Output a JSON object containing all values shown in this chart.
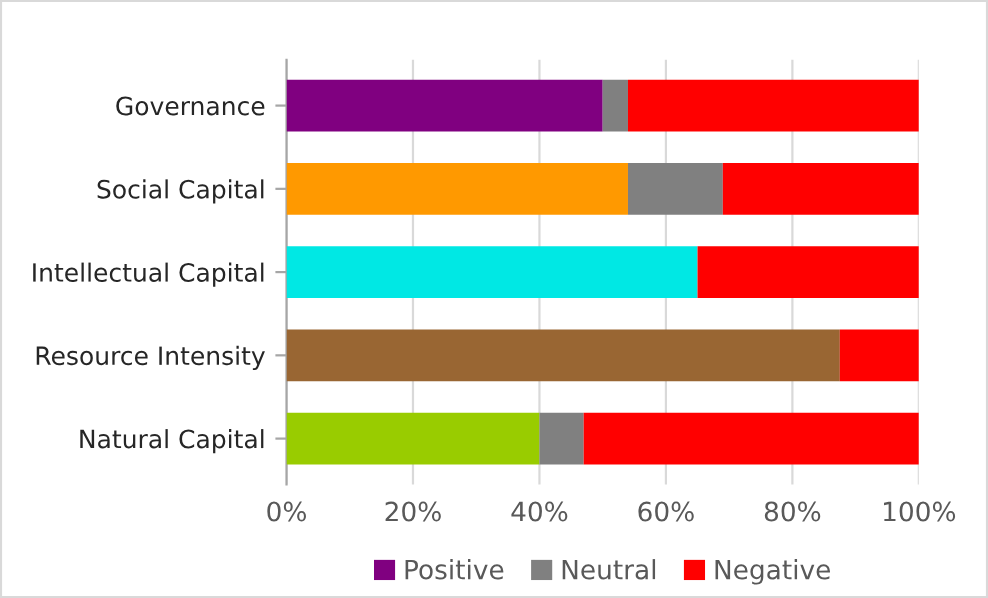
{
  "chart_data": {
    "type": "bar",
    "orientation": "horizontal",
    "stacked": true,
    "categories": [
      "Governance",
      "Social Capital",
      "Intellectual Capital",
      "Resource Intensity",
      "Natural Capital"
    ],
    "series": [
      {
        "name": "Positive",
        "color": "#800080",
        "colors": [
          "#800080",
          "#ff9900",
          "#00e8e4",
          "#996633",
          "#99cc00"
        ],
        "values": [
          50,
          54,
          65,
          87.5,
          40
        ]
      },
      {
        "name": "Neutral",
        "color": "#808080",
        "values": [
          4,
          15,
          null,
          null,
          7
        ]
      },
      {
        "name": "Negative",
        "color": "#ff0000",
        "values": [
          46,
          31,
          35,
          12.5,
          53
        ]
      }
    ],
    "xlim": [
      0,
      100
    ],
    "xticks": [
      {
        "value": 0,
        "label": "0%"
      },
      {
        "value": 20,
        "label": "20%"
      },
      {
        "value": 40,
        "label": "40%"
      },
      {
        "value": 60,
        "label": "60%"
      },
      {
        "value": 80,
        "label": "80%"
      },
      {
        "value": 100,
        "label": "100%"
      }
    ],
    "grid": "x",
    "legend": "bottom"
  }
}
